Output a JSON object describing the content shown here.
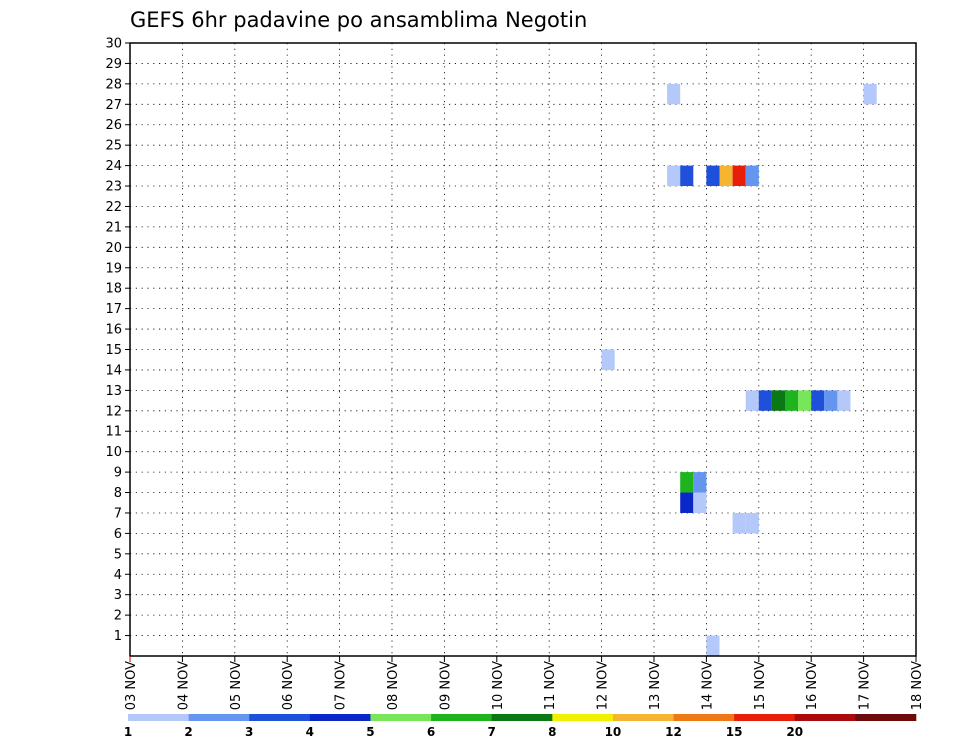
{
  "chart_data": {
    "type": "heatmap",
    "title": "GEFS 6hr padavine po ansamblima Negotin",
    "xlabel": "",
    "ylabel": "",
    "x_ticks": [
      "03 NOV",
      "04 NOV",
      "05 NOV",
      "06 NOV",
      "07 NOV",
      "08 NOV",
      "09 NOV",
      "10 NOV",
      "11 NOV",
      "12 NOV",
      "13 NOV",
      "14 NOV",
      "15 NOV",
      "16 NOV",
      "17 NOV",
      "18 NOV"
    ],
    "x_range": [
      0,
      60
    ],
    "y_range": [
      0,
      30
    ],
    "y_ticks": [
      "1",
      "2",
      "3",
      "4",
      "5",
      "6",
      "7",
      "8",
      "9",
      "10",
      "11",
      "12",
      "13",
      "14",
      "15",
      "16",
      "17",
      "18",
      "19",
      "20",
      "21",
      "22",
      "23",
      "24",
      "25",
      "26",
      "27",
      "28",
      "29",
      "30"
    ],
    "grid": true,
    "legend_position": "bottom",
    "colorbar": {
      "labels": [
        "1",
        "2",
        "3",
        "4",
        "5",
        "6",
        "7",
        "8",
        "10",
        "12",
        "15",
        "20"
      ],
      "colors": [
        "#b4c8fa",
        "#6496f0",
        "#1e50dc",
        "#0a28c8",
        "#78e65a",
        "#1eb41e",
        "#0a7814",
        "#f0f000",
        "#f5b432",
        "#f07814",
        "#e61e0a",
        "#aa0a0a",
        "#6e0a0a"
      ]
    },
    "cells": [
      {
        "t": 44,
        "y": 1,
        "v": 1.5
      },
      {
        "t": 41,
        "y": 28,
        "v": 1.5
      },
      {
        "t": 56,
        "y": 28,
        "v": 1.5
      },
      {
        "t": 41,
        "y": 24,
        "v": 1.5
      },
      {
        "t": 42,
        "y": 24,
        "v": 3.5
      },
      {
        "t": 44,
        "y": 24,
        "v": 3.5
      },
      {
        "t": 45,
        "y": 24,
        "v": 11
      },
      {
        "t": 46,
        "y": 24,
        "v": 17
      },
      {
        "t": 47,
        "y": 24,
        "v": 2.5
      },
      {
        "t": 36,
        "y": 15,
        "v": 1.5
      },
      {
        "t": 47,
        "y": 13,
        "v": 1.5
      },
      {
        "t": 48,
        "y": 13,
        "v": 3.5
      },
      {
        "t": 49,
        "y": 13,
        "v": 7.5
      },
      {
        "t": 50,
        "y": 13,
        "v": 6.5
      },
      {
        "t": 51,
        "y": 13,
        "v": 5.5
      },
      {
        "t": 52,
        "y": 13,
        "v": 3.5
      },
      {
        "t": 53,
        "y": 13,
        "v": 2.5
      },
      {
        "t": 54,
        "y": 13,
        "v": 1.5
      },
      {
        "t": 42,
        "y": 9,
        "v": 6.5
      },
      {
        "t": 43,
        "y": 9,
        "v": 2.5
      },
      {
        "t": 42,
        "y": 8,
        "v": 4.5
      },
      {
        "t": 43,
        "y": 8,
        "v": 1.5
      },
      {
        "t": 46,
        "y": 7,
        "v": 1.5
      },
      {
        "t": 47,
        "y": 7,
        "v": 1.5
      }
    ]
  }
}
